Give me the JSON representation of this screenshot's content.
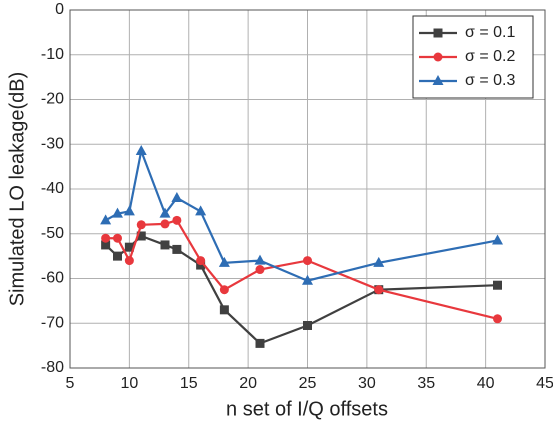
{
  "chart_data": {
    "type": "line",
    "x_label": "n set of I/Q offsets",
    "y_label": "Simulated LO leakage(dB)",
    "x": [
      8,
      9,
      10,
      11,
      13,
      14,
      16,
      18,
      21,
      25,
      31,
      41
    ],
    "series": [
      {
        "name": "σ = 0.1",
        "color": "#404040",
        "marker": "square",
        "values": [
          -52.5,
          -55,
          -53,
          -50.5,
          -52.5,
          -53.5,
          -57,
          -67,
          -74.5,
          -70.5,
          -62.5,
          -61.5
        ]
      },
      {
        "name": "σ = 0.2",
        "color": "#e8383d",
        "marker": "circle",
        "values": [
          -51,
          -51,
          -56,
          -48,
          -47.8,
          -47,
          -56,
          -62.5,
          -58,
          -56,
          -62.5,
          -69
        ]
      },
      {
        "name": "σ = 0.3",
        "color": "#2e6db4",
        "marker": "triangle",
        "values": [
          -47,
          -45.5,
          -45,
          -31.5,
          -45.5,
          -42,
          -45,
          -56.5,
          -56,
          -60.5,
          -56.5,
          -51.5
        ]
      }
    ],
    "xlim": [
      5,
      45
    ],
    "xticks": [
      5,
      10,
      15,
      20,
      25,
      30,
      35,
      40,
      45
    ],
    "ylim": [
      -80,
      0
    ],
    "yticks": [
      -80,
      -70,
      -60,
      -50,
      -40,
      -30,
      -20,
      -10,
      0
    ],
    "grid": true,
    "legend": "top-right"
  }
}
